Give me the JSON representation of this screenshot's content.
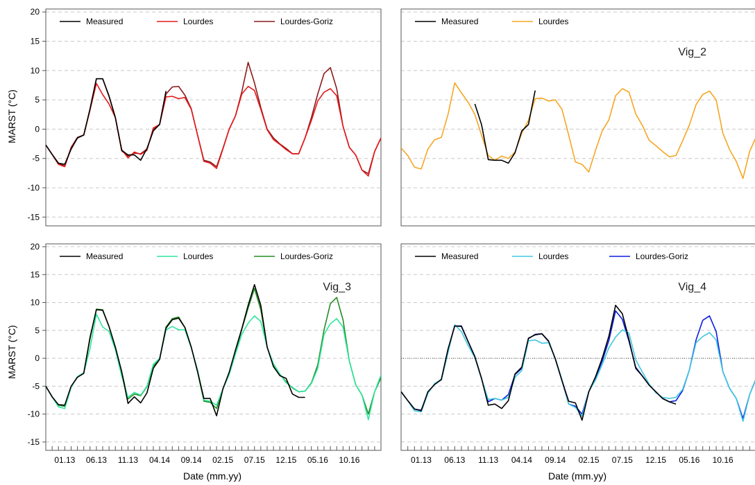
{
  "figure": {
    "y_axis_label": "MARST (°C)",
    "x_axis_label": "Date (mm.yy)",
    "y_ticks": [
      20,
      15,
      10,
      5,
      0,
      -5,
      -10,
      -15
    ],
    "x_ticks": [
      "01.13",
      "06.13",
      "11.13",
      "04.14",
      "09.14",
      "02.15",
      "07.15",
      "12.15",
      "05.16",
      "10.16"
    ]
  },
  "chart_data": [
    {
      "type": "line",
      "title": "",
      "xlabel": "",
      "ylabel": "MARST (°C)",
      "ylim": [
        -16.5,
        20.5
      ],
      "grid": "horizontal dashed",
      "legend_position": "top",
      "months": [
        "10.12",
        "11.12",
        "12.12",
        "01.13",
        "02.13",
        "03.13",
        "04.13",
        "05.13",
        "06.13",
        "07.13",
        "08.13",
        "09.13",
        "10.13",
        "11.13",
        "12.13",
        "01.14",
        "02.14",
        "03.14",
        "04.14",
        "05.14",
        "06.14",
        "07.14",
        "08.14",
        "09.14",
        "10.14",
        "11.14",
        "12.14",
        "01.15",
        "02.15",
        "03.15",
        "04.15",
        "05.15",
        "06.15",
        "07.15",
        "08.15",
        "09.15",
        "10.15",
        "11.15",
        "12.15",
        "01.16",
        "02.16",
        "03.16",
        "04.16",
        "05.16",
        "06.16",
        "07.16",
        "08.16",
        "09.16",
        "10.16",
        "11.16",
        "12.16",
        "01.17",
        "02.17",
        "03.17"
      ],
      "series": [
        {
          "name": "Measured",
          "color": "#000000",
          "values": [
            -2.7,
            -4.3,
            -5.8,
            -6.0,
            -3.4,
            -1.5,
            -1.0,
            3.5,
            8.6,
            8.6,
            5.6,
            2.0,
            -3.6,
            -4.4,
            -4.4,
            -5.3,
            -3.3,
            -0.3,
            0.8,
            6.5,
            null,
            null,
            null,
            null,
            null,
            null,
            null,
            null,
            null,
            null,
            null,
            null,
            null,
            null,
            null,
            null,
            null,
            null,
            null,
            null,
            null,
            null,
            null,
            null,
            null,
            null,
            null,
            null,
            null,
            null,
            null,
            null,
            null,
            null
          ]
        },
        {
          "name": "Lourdes",
          "color": "#e31a1c",
          "values": [
            -2.7,
            -4.3,
            -6.0,
            -6.4,
            -3.2,
            -1.5,
            -1.0,
            3.3,
            7.8,
            5.9,
            4.3,
            2.0,
            -3.5,
            -4.9,
            -3.9,
            -4.3,
            -3.6,
            0.2,
            0.8,
            5.5,
            5.6,
            5.2,
            5.4,
            3.4,
            -1.0,
            -5.5,
            -5.8,
            -6.7,
            -3.4,
            0.0,
            2.3,
            6.0,
            7.3,
            6.6,
            3.4,
            -0.1,
            -1.8,
            -2.6,
            -3.5,
            -4.2,
            -4.2,
            -1.5,
            1.5,
            4.8,
            6.3,
            6.9,
            5.7,
            0.5,
            -3.1,
            -4.4,
            -7.0,
            -8.0,
            -3.8,
            -1.5
          ]
        },
        {
          "name": "Lourdes-Goriz",
          "color": "#8b1a1a",
          "values": [
            -2.7,
            -4.3,
            -5.8,
            -6.3,
            -3.1,
            -1.4,
            -1.0,
            3.4,
            8.6,
            8.6,
            5.7,
            2.0,
            -3.7,
            -4.6,
            -4.1,
            -4.2,
            -3.4,
            -0.1,
            0.8,
            6.0,
            7.2,
            7.3,
            5.8,
            3.5,
            -1.0,
            -5.3,
            -5.6,
            -6.4,
            -3.3,
            0.0,
            2.3,
            6.4,
            11.4,
            7.9,
            3.7,
            0.0,
            -1.5,
            -2.5,
            -3.3,
            -4.2,
            -4.2,
            -1.5,
            2.0,
            6.0,
            9.5,
            10.5,
            6.9,
            0.5,
            -3.1,
            -4.4,
            -7.0,
            -7.6,
            -3.8,
            -1.5
          ]
        }
      ]
    },
    {
      "type": "line",
      "title": "Vig_2",
      "xlabel": "",
      "ylabel": "",
      "ylim": [
        -16.5,
        20.5
      ],
      "grid": "horizontal dashed",
      "legend_position": "top",
      "months": [
        "10.12",
        "11.12",
        "12.12",
        "01.13",
        "02.13",
        "03.13",
        "04.13",
        "05.13",
        "06.13",
        "07.13",
        "08.13",
        "09.13",
        "10.13",
        "11.13",
        "12.13",
        "01.14",
        "02.14",
        "03.14",
        "04.14",
        "05.14",
        "06.14",
        "07.14",
        "08.14",
        "09.14",
        "10.14",
        "11.14",
        "12.14",
        "01.15",
        "02.15",
        "03.15",
        "04.15",
        "05.15",
        "06.15",
        "07.15",
        "08.15",
        "09.15",
        "10.15",
        "11.15",
        "12.15",
        "01.16",
        "02.16",
        "03.16",
        "04.16",
        "05.16",
        "06.16",
        "07.16",
        "08.16",
        "09.16",
        "10.16",
        "11.16",
        "12.16",
        "01.17",
        "02.17",
        "03.17"
      ],
      "series": [
        {
          "name": "Measured",
          "color": "#000000",
          "values": [
            null,
            null,
            null,
            null,
            null,
            null,
            null,
            null,
            null,
            null,
            null,
            4.3,
            0.8,
            -5.2,
            -5.3,
            -5.3,
            -5.8,
            -4.0,
            -0.3,
            0.8,
            6.6,
            null,
            null,
            null,
            null,
            null,
            null,
            null,
            null,
            null,
            null,
            null,
            null,
            null,
            null,
            null,
            null,
            null,
            null,
            null,
            null,
            null,
            null,
            null,
            null,
            null,
            null,
            null,
            null,
            null,
            null,
            null,
            null,
            null
          ]
        },
        {
          "name": "Lourdes",
          "color": "#f5a623",
          "values": [
            -3.2,
            -4.5,
            -6.5,
            -6.8,
            -3.4,
            -1.8,
            -1.4,
            2.5,
            7.9,
            6.2,
            4.6,
            2.5,
            -1.0,
            -4.5,
            -5.3,
            -4.6,
            -5.0,
            -3.9,
            -0.7,
            1.5,
            5.2,
            5.3,
            4.8,
            5.0,
            3.4,
            -1.0,
            -5.6,
            -6.0,
            -7.3,
            -3.6,
            -0.3,
            1.6,
            5.7,
            6.9,
            6.3,
            2.6,
            0.6,
            -1.9,
            -2.8,
            -3.8,
            -4.7,
            -4.5,
            -2.0,
            0.7,
            4.2,
            5.9,
            6.5,
            5.0,
            -0.7,
            -3.5,
            -5.5,
            -8.4,
            -3.8,
            -1.2
          ]
        }
      ]
    },
    {
      "type": "line",
      "title": "Vig_3",
      "xlabel": "Date (mm.yy)",
      "ylabel": "MARST (°C)",
      "ylim": [
        -16.5,
        20.5
      ],
      "grid": "horizontal dashed",
      "legend_position": "top",
      "months": [
        "10.12",
        "11.12",
        "12.12",
        "01.13",
        "02.13",
        "03.13",
        "04.13",
        "05.13",
        "06.13",
        "07.13",
        "08.13",
        "09.13",
        "10.13",
        "11.13",
        "12.13",
        "01.14",
        "02.14",
        "03.14",
        "04.14",
        "05.14",
        "06.14",
        "07.14",
        "08.14",
        "09.14",
        "10.14",
        "11.14",
        "12.14",
        "01.15",
        "02.15",
        "03.15",
        "04.15",
        "05.15",
        "06.15",
        "07.15",
        "08.15",
        "09.15",
        "10.15",
        "11.15",
        "12.15",
        "01.16",
        "02.16",
        "03.16",
        "04.16",
        "05.16",
        "06.16",
        "07.16",
        "08.16",
        "09.16",
        "10.16",
        "11.16",
        "12.16",
        "01.17",
        "02.17",
        "03.17"
      ],
      "series": [
        {
          "name": "Measured",
          "color": "#000000",
          "values": [
            -5.0,
            -6.9,
            -8.3,
            -8.4,
            -5.0,
            -3.4,
            -2.7,
            3.8,
            8.7,
            8.6,
            5.7,
            2.0,
            -2.4,
            -8.1,
            -6.9,
            -8.0,
            -6.2,
            -1.8,
            -0.2,
            5.4,
            6.9,
            7.2,
            5.5,
            2.0,
            -2.4,
            -7.2,
            -7.2,
            -10.3,
            -5.5,
            -2.5,
            1.5,
            5.3,
            9.5,
            13.2,
            9.5,
            2.0,
            -1.5,
            -3.1,
            -3.6,
            -6.4,
            -7.0,
            -7.0,
            null,
            null,
            null,
            null,
            null,
            null,
            null,
            null,
            null,
            null,
            null,
            null
          ]
        },
        {
          "name": "Lourdes",
          "color": "#2ee59d",
          "values": [
            -5.0,
            -6.9,
            -8.7,
            -9.0,
            -5.2,
            -3.3,
            -2.6,
            1.8,
            7.9,
            5.6,
            4.8,
            1.6,
            -3.2,
            -7.0,
            -6.1,
            -6.6,
            -5.0,
            -1.1,
            0.0,
            5.1,
            5.7,
            5.1,
            5.1,
            1.9,
            -2.1,
            -7.5,
            -7.7,
            -8.4,
            -5.5,
            -2.9,
            0.8,
            4.3,
            6.3,
            7.6,
            6.6,
            2.0,
            -1.0,
            -2.8,
            -4.4,
            -5.2,
            -6.0,
            -5.9,
            -4.5,
            -1.8,
            4.3,
            6.2,
            7.1,
            5.6,
            -0.5,
            -4.7,
            -6.6,
            -11.0,
            -6.0,
            -3.0
          ]
        },
        {
          "name": "Lourdes-Goriz",
          "color": "#228b22",
          "values": [
            -5.0,
            -6.9,
            -8.4,
            -8.6,
            -5.1,
            -3.3,
            -2.6,
            3.5,
            8.8,
            8.7,
            5.7,
            2.0,
            -2.5,
            -7.3,
            -6.4,
            -6.7,
            -5.1,
            -1.4,
            -0.1,
            5.6,
            7.1,
            7.4,
            5.5,
            2.0,
            -2.4,
            -7.7,
            -7.9,
            -9.0,
            -5.5,
            -2.7,
            1.1,
            5.2,
            9.0,
            12.5,
            8.7,
            2.0,
            -1.2,
            -2.9,
            -4.2,
            -5.3,
            -6.0,
            -5.9,
            -4.4,
            -1.2,
            5.1,
            9.8,
            10.9,
            6.9,
            -0.5,
            -4.7,
            -6.6,
            -10.0,
            -6.0,
            -3.5
          ]
        }
      ]
    },
    {
      "type": "line",
      "title": "Vig_4",
      "xlabel": "Date (mm.yy)",
      "ylabel": "",
      "ylim": [
        -16.5,
        20.5
      ],
      "grid": "horizontal dashed",
      "legend_position": "top",
      "months": [
        "10.12",
        "11.12",
        "12.12",
        "01.13",
        "02.13",
        "03.13",
        "04.13",
        "05.13",
        "06.13",
        "07.13",
        "08.13",
        "09.13",
        "10.13",
        "11.13",
        "12.13",
        "01.14",
        "02.14",
        "03.14",
        "04.14",
        "05.14",
        "06.14",
        "07.14",
        "08.14",
        "09.14",
        "10.14",
        "11.14",
        "12.14",
        "01.15",
        "02.15",
        "03.15",
        "04.15",
        "05.15",
        "06.15",
        "07.15",
        "08.15",
        "09.15",
        "10.15",
        "11.15",
        "12.15",
        "01.16",
        "02.16",
        "03.16",
        "04.16",
        "05.16",
        "06.16",
        "07.16",
        "08.16",
        "09.16",
        "10.16",
        "11.16",
        "12.16",
        "01.17",
        "02.17",
        "03.17"
      ],
      "series": [
        {
          "name": "Measured",
          "color": "#000000",
          "values": [
            -6.0,
            -7.6,
            -9.1,
            -9.4,
            -6.0,
            -4.7,
            -3.8,
            1.6,
            5.8,
            5.7,
            3.0,
            0.3,
            -3.6,
            -8.4,
            -8.2,
            -9.0,
            -7.6,
            -2.8,
            -1.6,
            3.6,
            4.2,
            4.4,
            3.1,
            -0.1,
            -4.0,
            -7.7,
            -8.0,
            -11.1,
            -6.0,
            -3.3,
            0.0,
            4.0,
            9.5,
            8.0,
            3.3,
            -1.8,
            -3.2,
            -4.8,
            -6.0,
            -7.2,
            -7.8,
            -8.2,
            null,
            null,
            null,
            null,
            null,
            null,
            null,
            null,
            null,
            null,
            null,
            null
          ]
        },
        {
          "name": "Lourdes",
          "color": "#3ec8e0",
          "values": [
            -6.0,
            -7.6,
            -9.4,
            -9.6,
            -6.3,
            -4.5,
            -3.9,
            1.0,
            6.0,
            4.8,
            2.3,
            0.1,
            -3.7,
            -7.4,
            -7.2,
            -7.5,
            -7.0,
            -3.4,
            -2.2,
            3.1,
            3.3,
            2.7,
            2.8,
            0.0,
            -3.8,
            -8.2,
            -8.8,
            -10.4,
            -6.0,
            -3.9,
            -1.1,
            1.9,
            3.8,
            5.1,
            4.5,
            -0.3,
            -2.5,
            -4.6,
            -6.2,
            -7.0,
            -7.2,
            -7.0,
            -5.6,
            -2.1,
            2.8,
            3.9,
            4.6,
            3.3,
            -2.4,
            -5.4,
            -7.2,
            -11.3,
            -6.5,
            -3.5
          ]
        },
        {
          "name": "Lourdes-Goriz",
          "color": "#0a1de0",
          "values": [
            -6.0,
            -7.6,
            -9.1,
            -9.3,
            -6.2,
            -4.6,
            -3.8,
            1.6,
            5.8,
            5.8,
            3.0,
            0.3,
            -3.6,
            -7.8,
            -7.2,
            -7.5,
            -6.5,
            -2.9,
            -1.8,
            3.5,
            4.3,
            4.4,
            3.0,
            -0.1,
            -4.0,
            -8.2,
            -8.6,
            -10.0,
            -6.0,
            -3.5,
            -0.5,
            3.2,
            8.5,
            7.0,
            3.0,
            -1.6,
            -3.2,
            -4.8,
            -6.0,
            -7.2,
            -7.8,
            -7.6,
            -5.8,
            -2.1,
            3.3,
            6.8,
            7.6,
            4.8,
            -2.4,
            -5.4,
            -7.2,
            -10.8,
            -6.5,
            -3.5
          ]
        }
      ]
    }
  ]
}
